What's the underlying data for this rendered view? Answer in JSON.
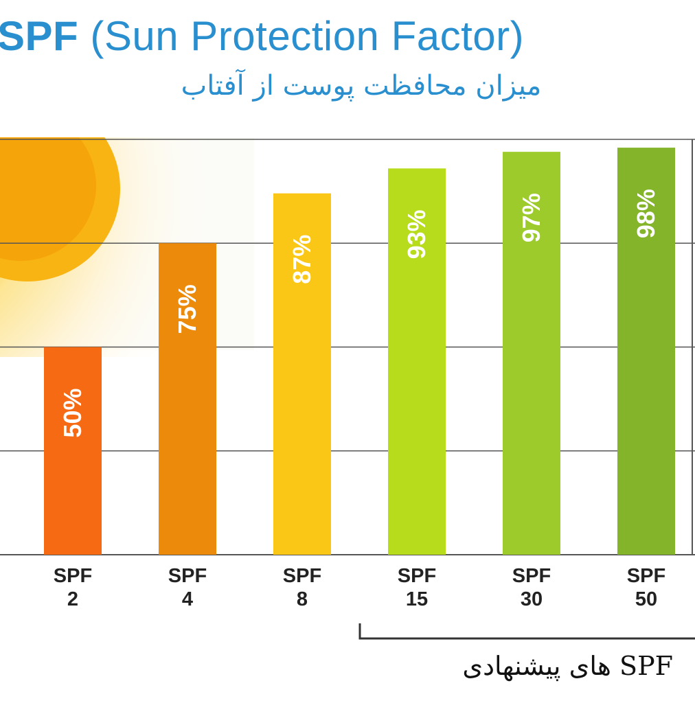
{
  "title": {
    "bold": "SPF",
    "rest": " (Sun Protection Factor)"
  },
  "subtitle": "میزان محافظت پوست از آفتاب",
  "recommendation_label": "SPF های پیشنهادی",
  "colors": {
    "title": "#2a8fcf",
    "grid": "#555555",
    "bars": [
      "#f56a12",
      "#eb8a0b",
      "#fac717",
      "#b7dc1b",
      "#9dcb2b",
      "#84b42a"
    ]
  },
  "chart_data": {
    "type": "bar",
    "title": "SPF (Sun Protection Factor)",
    "subtitle": "میزان محافظت پوست از آفتاب",
    "categories": [
      {
        "line1": "SPF",
        "line2": "2"
      },
      {
        "line1": "SPF",
        "line2": "4"
      },
      {
        "line1": "SPF",
        "line2": "8"
      },
      {
        "line1": "SPF",
        "line2": "15"
      },
      {
        "line1": "SPF",
        "line2": "30"
      },
      {
        "line1": "SPF",
        "line2": "50"
      }
    ],
    "values": [
      50,
      75,
      87,
      93,
      97,
      98
    ],
    "value_labels": [
      "50%",
      "75%",
      "87%",
      "93%",
      "97%",
      "98%"
    ],
    "ylim": [
      0,
      100
    ],
    "gridlines": [
      0,
      25,
      50,
      75,
      100
    ],
    "grid": true,
    "legend": "none",
    "bracket": {
      "from_category": 3,
      "to_category": 5,
      "label": "SPF های پیشنهادی"
    }
  }
}
